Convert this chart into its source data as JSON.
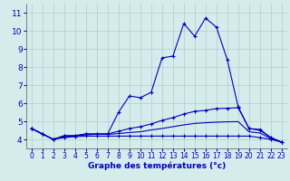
{
  "xlabel": "Graphe des températures (°c)",
  "bg_color": "#d5ecec",
  "grid_color": "#b0cccc",
  "line_color": "#0000bb",
  "x_ticks": [
    0,
    1,
    2,
    3,
    4,
    5,
    6,
    7,
    8,
    9,
    10,
    11,
    12,
    13,
    14,
    15,
    16,
    17,
    18,
    19,
    20,
    21,
    22,
    23
  ],
  "ylim": [
    3.5,
    11.5
  ],
  "xlim": [
    -0.5,
    23.5
  ],
  "y_ticks": [
    4,
    5,
    6,
    7,
    8,
    9,
    10,
    11
  ],
  "series": {
    "temp": [
      4.6,
      4.3,
      4.0,
      4.2,
      4.2,
      4.3,
      4.3,
      4.3,
      5.5,
      6.4,
      6.3,
      6.6,
      8.5,
      8.6,
      10.4,
      9.7,
      10.7,
      10.2,
      8.4,
      5.8,
      4.6,
      4.5,
      4.1,
      3.85
    ],
    "max_line": [
      4.6,
      4.3,
      4.0,
      4.2,
      4.2,
      4.3,
      4.3,
      4.3,
      4.45,
      4.6,
      4.7,
      4.85,
      5.05,
      5.2,
      5.4,
      5.55,
      5.6,
      5.7,
      5.72,
      5.75,
      4.6,
      4.55,
      4.1,
      3.85
    ],
    "avg_line": [
      4.6,
      4.3,
      4.0,
      4.15,
      4.2,
      4.25,
      4.28,
      4.28,
      4.32,
      4.38,
      4.42,
      4.52,
      4.6,
      4.7,
      4.8,
      4.88,
      4.92,
      4.95,
      4.97,
      4.98,
      4.42,
      4.35,
      4.05,
      3.85
    ],
    "min_line": [
      4.6,
      4.3,
      4.0,
      4.1,
      4.15,
      4.18,
      4.18,
      4.18,
      4.18,
      4.18,
      4.18,
      4.18,
      4.18,
      4.18,
      4.18,
      4.18,
      4.18,
      4.18,
      4.18,
      4.18,
      4.18,
      4.1,
      4.0,
      3.85
    ]
  }
}
